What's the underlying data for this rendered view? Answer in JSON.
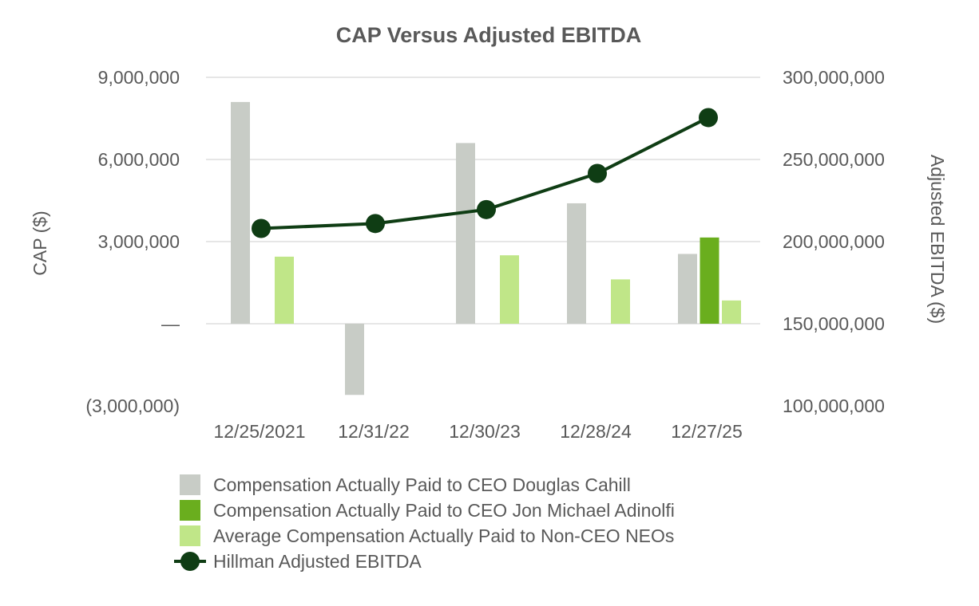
{
  "chart_data": {
    "type": "bar",
    "title": "CAP Versus Adjusted EBITDA",
    "categories": [
      "12/25/2021",
      "12/31/22",
      "12/30/23",
      "12/28/24",
      "12/27/25"
    ],
    "ylabel": "CAP ($)",
    "y2label": "Adjusted EBITDA ($)",
    "ylim": [
      -3000000,
      9000000
    ],
    "y2lim": [
      100000000,
      300000000
    ],
    "yticks": [
      {
        "value": -3000000,
        "label": "(3,000,000)"
      },
      {
        "value": 0,
        "label": "—"
      },
      {
        "value": 3000000,
        "label": "3,000,000"
      },
      {
        "value": 6000000,
        "label": "6,000,000"
      },
      {
        "value": 9000000,
        "label": "9,000,000"
      }
    ],
    "y2ticks": [
      {
        "value": 100000000,
        "label": "100,000,000"
      },
      {
        "value": 150000000,
        "label": "150,000,000"
      },
      {
        "value": 200000000,
        "label": "200,000,000"
      },
      {
        "value": 250000000,
        "label": "250,000,000"
      },
      {
        "value": 300000000,
        "label": "300,000,000"
      }
    ],
    "series": [
      {
        "name": "Compensation Actually Paid to CEO Douglas Cahill",
        "type": "bar",
        "color": "#c8ccc6",
        "values": [
          8100000,
          -2600000,
          6600000,
          4400000,
          2550000
        ]
      },
      {
        "name": "Compensation Actually Paid to CEO Jon Michael Adinolfi",
        "type": "bar",
        "color": "#6aae1e",
        "values": [
          null,
          null,
          null,
          null,
          3150000
        ]
      },
      {
        "name": "Average Compensation Actually Paid to Non-CEO NEOs",
        "type": "bar",
        "color": "#c0e688",
        "values": [
          2450000,
          null,
          2500000,
          1620000,
          850000
        ]
      },
      {
        "name": "Hillman Adjusted EBITDA",
        "type": "line",
        "axis": "right",
        "color": "#0f3d14",
        "values": [
          208000000,
          211000000,
          219500000,
          241500000,
          275500000
        ]
      }
    ],
    "grid": true,
    "legend": "bottom"
  }
}
